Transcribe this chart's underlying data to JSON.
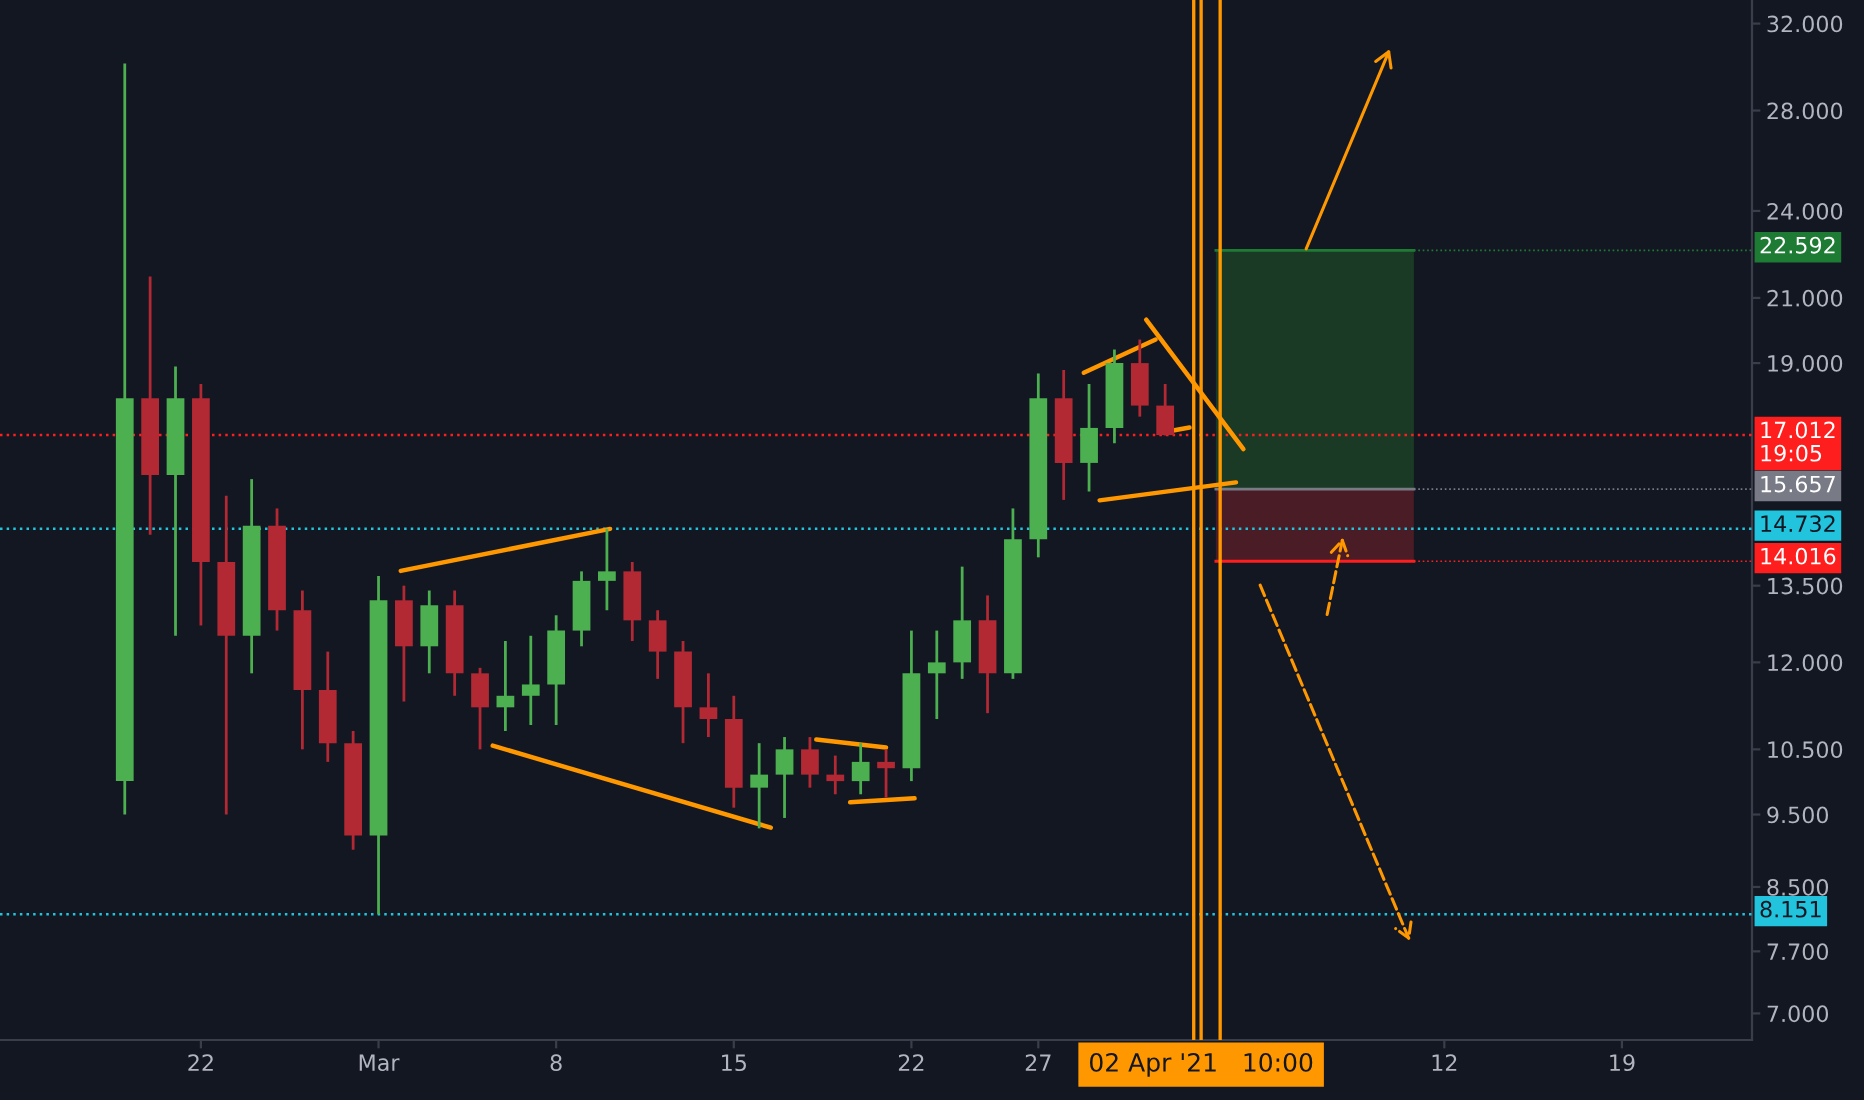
{
  "chart_data": {
    "type": "candlestick",
    "x": [
      "2021-02-19",
      "2021-02-20",
      "2021-02-21",
      "2021-02-22",
      "2021-02-23",
      "2021-02-24",
      "2021-02-25",
      "2021-02-26",
      "2021-02-27",
      "2021-02-28",
      "2021-03-01",
      "2021-03-02",
      "2021-03-03",
      "2021-03-04",
      "2021-03-05",
      "2021-03-06",
      "2021-03-07",
      "2021-03-08",
      "2021-03-09",
      "2021-03-10",
      "2021-03-11",
      "2021-03-12",
      "2021-03-13",
      "2021-03-14",
      "2021-03-15",
      "2021-03-16",
      "2021-03-17",
      "2021-03-18",
      "2021-03-19",
      "2021-03-20",
      "2021-03-21",
      "2021-03-22",
      "2021-03-23",
      "2021-03-24",
      "2021-03-25",
      "2021-03-26",
      "2021-03-27",
      "2021-03-28",
      "2021-03-29",
      "2021-03-30",
      "2021-03-31",
      "2021-04-01"
    ],
    "ohlc": [
      [
        10,
        30.1,
        9.5,
        18
      ],
      [
        18,
        21.7,
        14.6,
        16
      ],
      [
        16,
        18.9,
        12.5,
        18
      ],
      [
        18,
        18.4,
        12.7,
        14
      ],
      [
        14,
        15.5,
        9.5,
        12.5
      ],
      [
        12.5,
        15.9,
        11.8,
        14.8
      ],
      [
        14.8,
        15.2,
        12.6,
        13
      ],
      [
        13,
        13.4,
        10.5,
        11.5
      ],
      [
        11.5,
        12.2,
        10.3,
        10.6
      ],
      [
        10.6,
        10.8,
        9.0,
        9.2
      ],
      [
        9.2,
        13.7,
        8.151,
        13.2
      ],
      [
        13.2,
        13.5,
        11.3,
        12.3
      ],
      [
        12.3,
        13.4,
        11.8,
        13.1
      ],
      [
        13.1,
        13.4,
        11.4,
        11.8
      ],
      [
        11.8,
        11.9,
        10.5,
        11.2
      ],
      [
        11.2,
        12.4,
        10.8,
        11.4
      ],
      [
        11.4,
        12.5,
        10.9,
        11.6
      ],
      [
        11.6,
        12.9,
        10.9,
        12.6
      ],
      [
        12.6,
        13.8,
        12.3,
        13.6
      ],
      [
        13.6,
        14.732,
        13.0,
        13.8
      ],
      [
        13.8,
        14.0,
        12.4,
        12.8
      ],
      [
        12.8,
        13.0,
        11.7,
        12.2
      ],
      [
        12.2,
        12.4,
        10.6,
        11.2
      ],
      [
        11.2,
        11.8,
        10.7,
        11.0
      ],
      [
        11.0,
        11.4,
        9.6,
        9.9
      ],
      [
        9.9,
        10.6,
        9.3,
        10.1
      ],
      [
        10.1,
        10.7,
        9.45,
        10.5
      ],
      [
        10.5,
        10.7,
        9.9,
        10.1
      ],
      [
        10.1,
        10.4,
        9.8,
        10.0
      ],
      [
        10.0,
        10.6,
        9.8,
        10.3
      ],
      [
        10.3,
        10.5,
        9.75,
        10.2
      ],
      [
        10.2,
        12.6,
        10.0,
        11.8
      ],
      [
        11.8,
        12.6,
        11.0,
        12.0
      ],
      [
        12.0,
        13.9,
        11.7,
        12.8
      ],
      [
        12.8,
        13.3,
        11.1,
        11.8
      ],
      [
        11.8,
        15.2,
        11.7,
        14.5
      ],
      [
        14.5,
        18.7,
        14.1,
        18.0
      ],
      [
        18.0,
        18.8,
        15.4,
        16.3
      ],
      [
        16.3,
        18.4,
        15.6,
        17.2
      ],
      [
        17.2,
        19.4,
        16.8,
        19.0
      ],
      [
        19.0,
        19.7,
        17.5,
        17.8
      ],
      [
        17.8,
        18.4,
        17.0,
        17.012
      ]
    ],
    "series": [
      {
        "type": "line",
        "color": "#ff9800",
        "x": [
          "2021-03-01T21:00",
          "2021-03-10T03:00"
        ],
        "values": [
          13.81,
          14.73
        ]
      },
      {
        "type": "line",
        "color": "#ff9800",
        "x": [
          "2021-03-05T12:00",
          "2021-03-16T11:00"
        ],
        "values": [
          10.56,
          9.31
        ]
      },
      {
        "type": "line",
        "color": "#ff9800",
        "x": [
          "2021-03-18T06:00",
          "2021-03-21T00:00"
        ],
        "values": [
          10.66,
          10.53
        ]
      },
      {
        "type": "line",
        "color": "#ff9800",
        "x": [
          "2021-03-19T14:00",
          "2021-03-22T03:00"
        ],
        "values": [
          9.68,
          9.74
        ]
      },
      {
        "type": "line",
        "color": "#ff9800",
        "x": [
          "2021-03-28T19:00",
          "2021-03-31T15:00"
        ],
        "values": [
          18.72,
          19.7
        ]
      },
      {
        "type": "line",
        "color": "#ff9800",
        "x": [
          "2021-03-31T06:00",
          "2021-04-04T02:00"
        ],
        "values": [
          20.31,
          16.65
        ]
      },
      {
        "type": "line",
        "color": "#ff9800",
        "x": [
          "2021-04-01T01:00",
          "2021-04-01T23:00"
        ],
        "values": [
          17.1,
          17.21
        ]
      },
      {
        "type": "line",
        "color": "#ff9800",
        "x": [
          "2021-03-29T10:00",
          "2021-04-03T19:00"
        ],
        "values": [
          15.39,
          15.82
        ]
      }
    ],
    "log": true,
    "xlim": [
      "2021-02-14T02:00",
      "2021-04-24T03:00"
    ],
    "xticks": [
      {
        "value": "2021-02-22",
        "label": "22"
      },
      {
        "value": "2021-03-01",
        "label": "Mar"
      },
      {
        "value": "2021-03-08",
        "label": "8"
      },
      {
        "value": "2021-03-15",
        "label": "15"
      },
      {
        "value": "2021-03-22",
        "label": "22"
      },
      {
        "value": "2021-03-27",
        "label": "27"
      },
      {
        "value": "2021-04-12",
        "label": "12"
      },
      {
        "value": "2021-04-19",
        "label": "19"
      }
    ],
    "ylim": [
      6.72,
      33.18
    ],
    "yticks": [
      {
        "value": 7,
        "label": "7.000"
      },
      {
        "value": 7.7,
        "label": "7.700"
      },
      {
        "value": 8.5,
        "label": "8.500"
      },
      {
        "value": 9.5,
        "label": "9.500"
      },
      {
        "value": 10.5,
        "label": "10.500"
      },
      {
        "value": 12,
        "label": "12.000"
      },
      {
        "value": 13.5,
        "label": "13.500"
      },
      {
        "value": 19,
        "label": "19.000"
      },
      {
        "value": 21,
        "label": "21.000"
      },
      {
        "value": 24,
        "label": "24.000"
      },
      {
        "value": 28,
        "label": "28.000"
      },
      {
        "value": 32,
        "label": "32.000"
      }
    ],
    "bands": [
      {
        "axis": "y",
        "from": 15.657,
        "to": 22.592,
        "color": "#1b3a26"
      },
      {
        "axis": "y",
        "from": 14.016,
        "to": 15.657,
        "color": "#4a1c25"
      }
    ],
    "ref_lines": [
      {
        "axis": "y",
        "value": 22.592,
        "label": "22.592",
        "color": "#1e7b34"
      },
      {
        "axis": "y",
        "value": 17.012,
        "label": "17.012\n19:05",
        "color": "#ff1e1e",
        "line_style": "dotted"
      },
      {
        "axis": "y",
        "value": 15.657,
        "label": "15.657",
        "color": "#787b86"
      },
      {
        "axis": "y",
        "value": 14.732,
        "label": "14.732",
        "color": "#22c3dc",
        "line_style": "dotted"
      },
      {
        "axis": "y",
        "value": 14.016,
        "label": "14.016",
        "color": "#ff1e1e"
      },
      {
        "axis": "y",
        "value": 8.151,
        "label": "8.151",
        "color": "#22c3dc",
        "line_style": "dotted"
      },
      {
        "axis": "x",
        "value": "2021-04-02T03:00",
        "color": "#ff9800",
        "line_style": "solid"
      },
      {
        "axis": "x",
        "value": "2021-04-02T10:00",
        "label": "02 Apr '21   10:00",
        "color": "#ff9800",
        "line_style": "solid"
      },
      {
        "axis": "x",
        "value": "2021-04-03T04:00",
        "color": "#ff9800",
        "line_style": "solid"
      }
    ]
  }
}
